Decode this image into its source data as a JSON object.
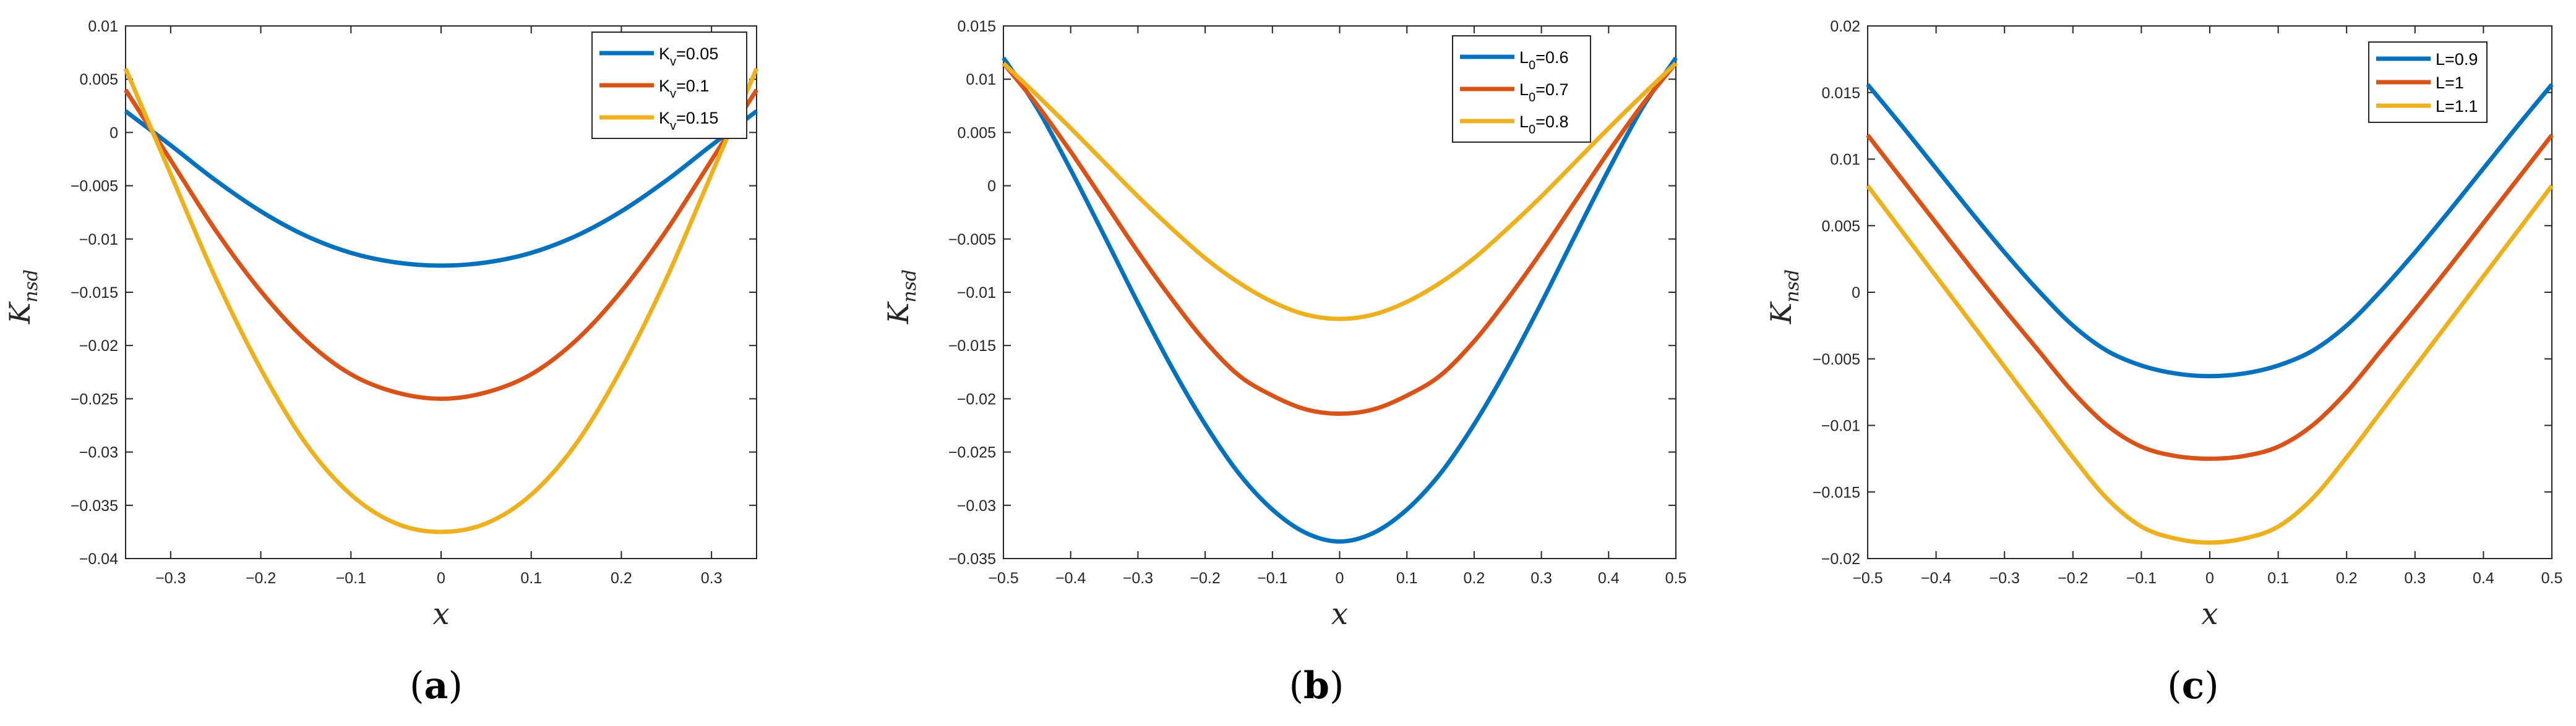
{
  "figure": {
    "colors": {
      "blue": "#0072BD",
      "orange": "#D95319",
      "yellow": "#EDB120"
    }
  },
  "chart_data": [
    {
      "type": "line",
      "panel_label": "a",
      "xlabel": "x",
      "ylabel": {
        "main": "K",
        "sub": "nsd"
      },
      "xlim": [
        -0.35,
        0.35
      ],
      "ylim": [
        -0.04,
        0.01
      ],
      "xticks": [
        -0.3,
        -0.2,
        -0.1,
        0,
        0.1,
        0.2,
        0.3
      ],
      "xtick_labels": [
        "−0.3",
        "−0.2",
        "−0.1",
        "0",
        "0.1",
        "0.2",
        "0.3"
      ],
      "yticks": [
        0.01,
        0.005,
        0,
        -0.005,
        -0.01,
        -0.015,
        -0.02,
        -0.025,
        -0.03,
        -0.035,
        -0.04
      ],
      "ytick_labels": [
        "0.01",
        "0.005",
        "0",
        "−0.005",
        "−0.01",
        "−0.015",
        "−0.02",
        "−0.025",
        "−0.03",
        "−0.035",
        "−0.04"
      ],
      "legend_position": "top-right",
      "series": [
        {
          "name": "Kv=0.05",
          "label_base": "K",
          "label_sub": "v",
          "label_rest": "=0.05",
          "color": "#0072BD",
          "x": [
            -0.35,
            -0.3,
            -0.25,
            -0.2,
            -0.15,
            -0.1,
            -0.05,
            0,
            0.05,
            0.1,
            0.15,
            0.2,
            0.25,
            0.3,
            0.35
          ],
          "y": [
            0.002,
            -0.0012,
            -0.0045,
            -0.0074,
            -0.0097,
            -0.0113,
            -0.0122,
            -0.0125,
            -0.0122,
            -0.0113,
            -0.0097,
            -0.0074,
            -0.0045,
            -0.0012,
            0.002
          ]
        },
        {
          "name": "Kv=0.1",
          "label_base": "K",
          "label_sub": "v",
          "label_rest": "=0.1",
          "color": "#D95319",
          "x": [
            -0.35,
            -0.3,
            -0.25,
            -0.2,
            -0.15,
            -0.1,
            -0.05,
            0,
            0.05,
            0.1,
            0.15,
            0.2,
            0.25,
            0.3,
            0.35
          ],
          "y": [
            0.004,
            -0.0026,
            -0.0092,
            -0.0149,
            -0.0195,
            -0.0227,
            -0.0244,
            -0.025,
            -0.0244,
            -0.0227,
            -0.0195,
            -0.0149,
            -0.0092,
            -0.0026,
            0.004
          ]
        },
        {
          "name": "Kv=0.15",
          "label_base": "K",
          "label_sub": "v",
          "label_rest": "=0.15",
          "color": "#EDB120",
          "x": [
            -0.35,
            -0.3,
            -0.25,
            -0.2,
            -0.15,
            -0.1,
            -0.05,
            0,
            0.05,
            0.1,
            0.15,
            0.2,
            0.25,
            0.3,
            0.35
          ],
          "y": [
            0.006,
            -0.0039,
            -0.0137,
            -0.0222,
            -0.0292,
            -0.034,
            -0.0367,
            -0.0375,
            -0.0367,
            -0.034,
            -0.0292,
            -0.0222,
            -0.0137,
            -0.0039,
            0.006
          ]
        }
      ]
    },
    {
      "type": "line",
      "panel_label": "b",
      "xlabel": "x",
      "ylabel": {
        "main": "K",
        "sub": "nsd"
      },
      "xlim": [
        -0.5,
        0.5
      ],
      "ylim": [
        -0.035,
        0.015
      ],
      "xticks": [
        -0.5,
        -0.4,
        -0.3,
        -0.2,
        -0.1,
        0,
        0.1,
        0.2,
        0.3,
        0.4,
        0.5
      ],
      "xtick_labels": [
        "−0.5",
        "−0.4",
        "−0.3",
        "−0.2",
        "−0.1",
        "0",
        "0.1",
        "0.2",
        "0.3",
        "0.4",
        "0.5"
      ],
      "yticks": [
        0.015,
        0.01,
        0.005,
        0,
        -0.005,
        -0.01,
        -0.015,
        -0.02,
        -0.025,
        -0.03,
        -0.035
      ],
      "ytick_labels": [
        "0.015",
        "0.01",
        "0.005",
        "0",
        "−0.005",
        "−0.01",
        "−0.015",
        "−0.02",
        "−0.025",
        "−0.03",
        "−0.035"
      ],
      "legend_position": "top-right",
      "series": [
        {
          "name": "L0=0.6",
          "label_base": "L",
          "label_sub": "0",
          "label_rest": "=0.6",
          "color": "#0072BD",
          "x": [
            -0.5,
            -0.45,
            -0.4,
            -0.35,
            -0.3,
            -0.25,
            -0.2,
            -0.15,
            -0.1,
            -0.05,
            0,
            0.05,
            0.1,
            0.15,
            0.2,
            0.25,
            0.3,
            0.35,
            0.4,
            0.45,
            0.5
          ],
          "y": [
            0.012,
            0.0073,
            0.0015,
            -0.0047,
            -0.011,
            -0.017,
            -0.0224,
            -0.027,
            -0.0304,
            -0.0326,
            -0.0334,
            -0.0326,
            -0.0304,
            -0.027,
            -0.0224,
            -0.017,
            -0.011,
            -0.0047,
            0.0015,
            0.0073,
            0.012
          ]
        },
        {
          "name": "L0=0.7",
          "label_base": "L",
          "label_sub": "0",
          "label_rest": "=0.7",
          "color": "#D95319",
          "x": [
            -0.5,
            -0.45,
            -0.4,
            -0.35,
            -0.3,
            -0.25,
            -0.2,
            -0.15,
            -0.1,
            -0.05,
            0,
            0.05,
            0.1,
            0.15,
            0.2,
            0.25,
            0.3,
            0.35,
            0.4,
            0.45,
            0.5
          ],
          "y": [
            0.0115,
            0.0076,
            0.0032,
            -0.0015,
            -0.0062,
            -0.0106,
            -0.0146,
            -0.0178,
            -0.0197,
            -0.021,
            -0.0214,
            -0.021,
            -0.0197,
            -0.0178,
            -0.0146,
            -0.0106,
            -0.0062,
            -0.0015,
            0.0032,
            0.0076,
            0.0115
          ]
        },
        {
          "name": "L0=0.8",
          "label_base": "L",
          "label_sub": "0",
          "label_rest": "=0.8",
          "color": "#EDB120",
          "x": [
            -0.5,
            -0.45,
            -0.4,
            -0.35,
            -0.3,
            -0.25,
            -0.2,
            -0.15,
            -0.1,
            -0.05,
            0,
            0.05,
            0.1,
            0.15,
            0.2,
            0.25,
            0.3,
            0.35,
            0.4,
            0.45,
            0.5
          ],
          "y": [
            0.0115,
            0.0085,
            0.0054,
            0.0022,
            -0.001,
            -0.004,
            -0.0068,
            -0.0091,
            -0.0109,
            -0.0121,
            -0.0125,
            -0.0121,
            -0.0109,
            -0.0091,
            -0.0068,
            -0.004,
            -0.001,
            0.0022,
            0.0054,
            0.0085,
            0.0115
          ]
        }
      ]
    },
    {
      "type": "line",
      "panel_label": "c",
      "xlabel": "x",
      "ylabel": {
        "main": "K",
        "sub": "nsd"
      },
      "xlim": [
        -0.5,
        0.5
      ],
      "ylim": [
        -0.02,
        0.02
      ],
      "xticks": [
        -0.5,
        -0.4,
        -0.3,
        -0.2,
        -0.1,
        0,
        0.1,
        0.2,
        0.3,
        0.4,
        0.5
      ],
      "xtick_labels": [
        "−0.5",
        "−0.4",
        "−0.3",
        "−0.2",
        "−0.1",
        "0",
        "0.1",
        "0.2",
        "0.3",
        "0.4",
        "0.5"
      ],
      "yticks": [
        0.02,
        0.015,
        0.01,
        0.005,
        0,
        -0.005,
        -0.01,
        -0.015,
        -0.02
      ],
      "ytick_labels": [
        "0.02",
        "0.015",
        "0.01",
        "0.005",
        "0",
        "−0.005",
        "−0.01",
        "−0.015",
        "−0.02"
      ],
      "legend_position": "top-right",
      "series": [
        {
          "name": "L=0.9",
          "label_base": "L",
          "label_sub": "",
          "label_rest": "=0.9",
          "color": "#0072BD",
          "x": [
            -0.5,
            -0.45,
            -0.4,
            -0.35,
            -0.3,
            -0.25,
            -0.2,
            -0.15,
            -0.1,
            -0.05,
            0,
            0.05,
            0.1,
            0.15,
            0.2,
            0.25,
            0.3,
            0.35,
            0.4,
            0.45,
            0.5
          ],
          "y": [
            0.0156,
            0.0125,
            0.0093,
            0.0061,
            0.003,
            0.0001,
            -0.0025,
            -0.0044,
            -0.0055,
            -0.0061,
            -0.0063,
            -0.0061,
            -0.0055,
            -0.0044,
            -0.0025,
            0.0001,
            0.003,
            0.0061,
            0.0093,
            0.0125,
            0.0156
          ]
        },
        {
          "name": "L=1",
          "label_base": "L",
          "label_sub": "",
          "label_rest": "=1",
          "color": "#D95319",
          "x": [
            -0.5,
            -0.45,
            -0.4,
            -0.35,
            -0.3,
            -0.25,
            -0.2,
            -0.15,
            -0.1,
            -0.05,
            0,
            0.05,
            0.1,
            0.15,
            0.2,
            0.25,
            0.3,
            0.35,
            0.4,
            0.45,
            0.5
          ],
          "y": [
            0.0118,
            0.0085,
            0.0052,
            0.0019,
            -0.0013,
            -0.0044,
            -0.0075,
            -0.01,
            -0.0116,
            -0.0123,
            -0.0125,
            -0.0123,
            -0.0116,
            -0.01,
            -0.0075,
            -0.0044,
            -0.0013,
            0.0019,
            0.0052,
            0.0085,
            0.0118
          ]
        },
        {
          "name": "L=1.1",
          "label_base": "L",
          "label_sub": "",
          "label_rest": "=1.1",
          "color": "#EDB120",
          "x": [
            -0.5,
            -0.45,
            -0.4,
            -0.35,
            -0.3,
            -0.25,
            -0.2,
            -0.15,
            -0.1,
            -0.05,
            0,
            0.05,
            0.1,
            0.15,
            0.2,
            0.25,
            0.3,
            0.35,
            0.4,
            0.45,
            0.5
          ],
          "y": [
            0.008,
            0.0046,
            0.0012,
            -0.0022,
            -0.0056,
            -0.009,
            -0.0124,
            -0.0155,
            -0.0176,
            -0.0185,
            -0.0188,
            -0.0185,
            -0.0176,
            -0.0155,
            -0.0124,
            -0.009,
            -0.0056,
            -0.0022,
            0.0012,
            0.0046,
            0.008
          ]
        }
      ]
    }
  ]
}
